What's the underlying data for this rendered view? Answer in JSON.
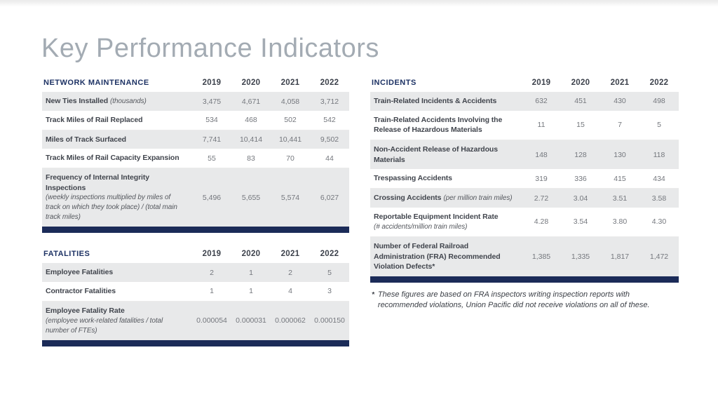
{
  "page_title": "Key Performance Indicators",
  "colors": {
    "navy_bar": "#1b2b58",
    "section_title": "#1d3264",
    "title_gray": "#a3abb3",
    "row_shade": "#e8e9ea"
  },
  "tables": {
    "network_maintenance": {
      "title": "NETWORK MAINTENANCE",
      "years": [
        "2019",
        "2020",
        "2021",
        "2022"
      ],
      "rows": [
        {
          "label": "New Ties Installed",
          "note": "(thousands)",
          "note_inline": true,
          "values": [
            "3,475",
            "4,671",
            "4,058",
            "3,712"
          ]
        },
        {
          "label": "Track Miles of Rail Replaced",
          "values": [
            "534",
            "468",
            "502",
            "542"
          ]
        },
        {
          "label": "Miles of Track Surfaced",
          "values": [
            "7,741",
            "10,414",
            "10,441",
            "9,502"
          ]
        },
        {
          "label": "Track Miles of Rail Capacity Expansion",
          "values": [
            "55",
            "83",
            "70",
            "44"
          ]
        },
        {
          "label": "Frequency of Internal Integrity Inspections",
          "note": "(weekly inspections multiplied by miles of track on which they took place) / (total main track miles)",
          "note_inline": false,
          "values": [
            "5,496",
            "5,655",
            "5,574",
            "6,027"
          ]
        }
      ]
    },
    "fatalities": {
      "title": "FATALITIES",
      "years": [
        "2019",
        "2020",
        "2021",
        "2022"
      ],
      "rows": [
        {
          "label": "Employee Fatalities",
          "values": [
            "2",
            "1",
            "2",
            "5"
          ]
        },
        {
          "label": "Contractor Fatalities",
          "values": [
            "1",
            "1",
            "4",
            "3"
          ]
        },
        {
          "label": "Employee Fatality Rate",
          "note": "(employee work-related fatalities / total number of FTEs)",
          "note_inline": false,
          "values": [
            "0.000054",
            "0.000031",
            "0.000062",
            "0.000150"
          ]
        }
      ]
    },
    "incidents": {
      "title": "INCIDENTS",
      "years": [
        "2019",
        "2020",
        "2021",
        "2022"
      ],
      "rows": [
        {
          "label": "Train-Related Incidents & Accidents",
          "values": [
            "632",
            "451",
            "430",
            "498"
          ]
        },
        {
          "label": "Train-Related Accidents Involving the Release of Hazardous Materials",
          "values": [
            "11",
            "15",
            "7",
            "5"
          ]
        },
        {
          "label": "Non-Accident Release of Hazardous Materials",
          "values": [
            "148",
            "128",
            "130",
            "118"
          ]
        },
        {
          "label": "Trespassing Accidents",
          "values": [
            "319",
            "336",
            "415",
            "434"
          ]
        },
        {
          "label": "Crossing Accidents",
          "note": "(per million train miles)",
          "note_inline": true,
          "values": [
            "2.72",
            "3.04",
            "3.51",
            "3.58"
          ]
        },
        {
          "label": "Reportable Equipment Incident Rate",
          "note": "(# accidents/million train miles)",
          "note_inline": false,
          "values": [
            "4.28",
            "3.54",
            "3.80",
            "4.30"
          ]
        },
        {
          "label": "Number of Federal Railroad Administration (FRA) Recommended Violation Defects*",
          "values": [
            "1,385",
            "1,335",
            "1,817",
            "1,472"
          ]
        }
      ]
    }
  },
  "footnote": {
    "marker": "*",
    "text": "These figures are based on FRA inspectors writing inspection reports with recommended violations, Union Pacific did not receive violations on all of these."
  }
}
